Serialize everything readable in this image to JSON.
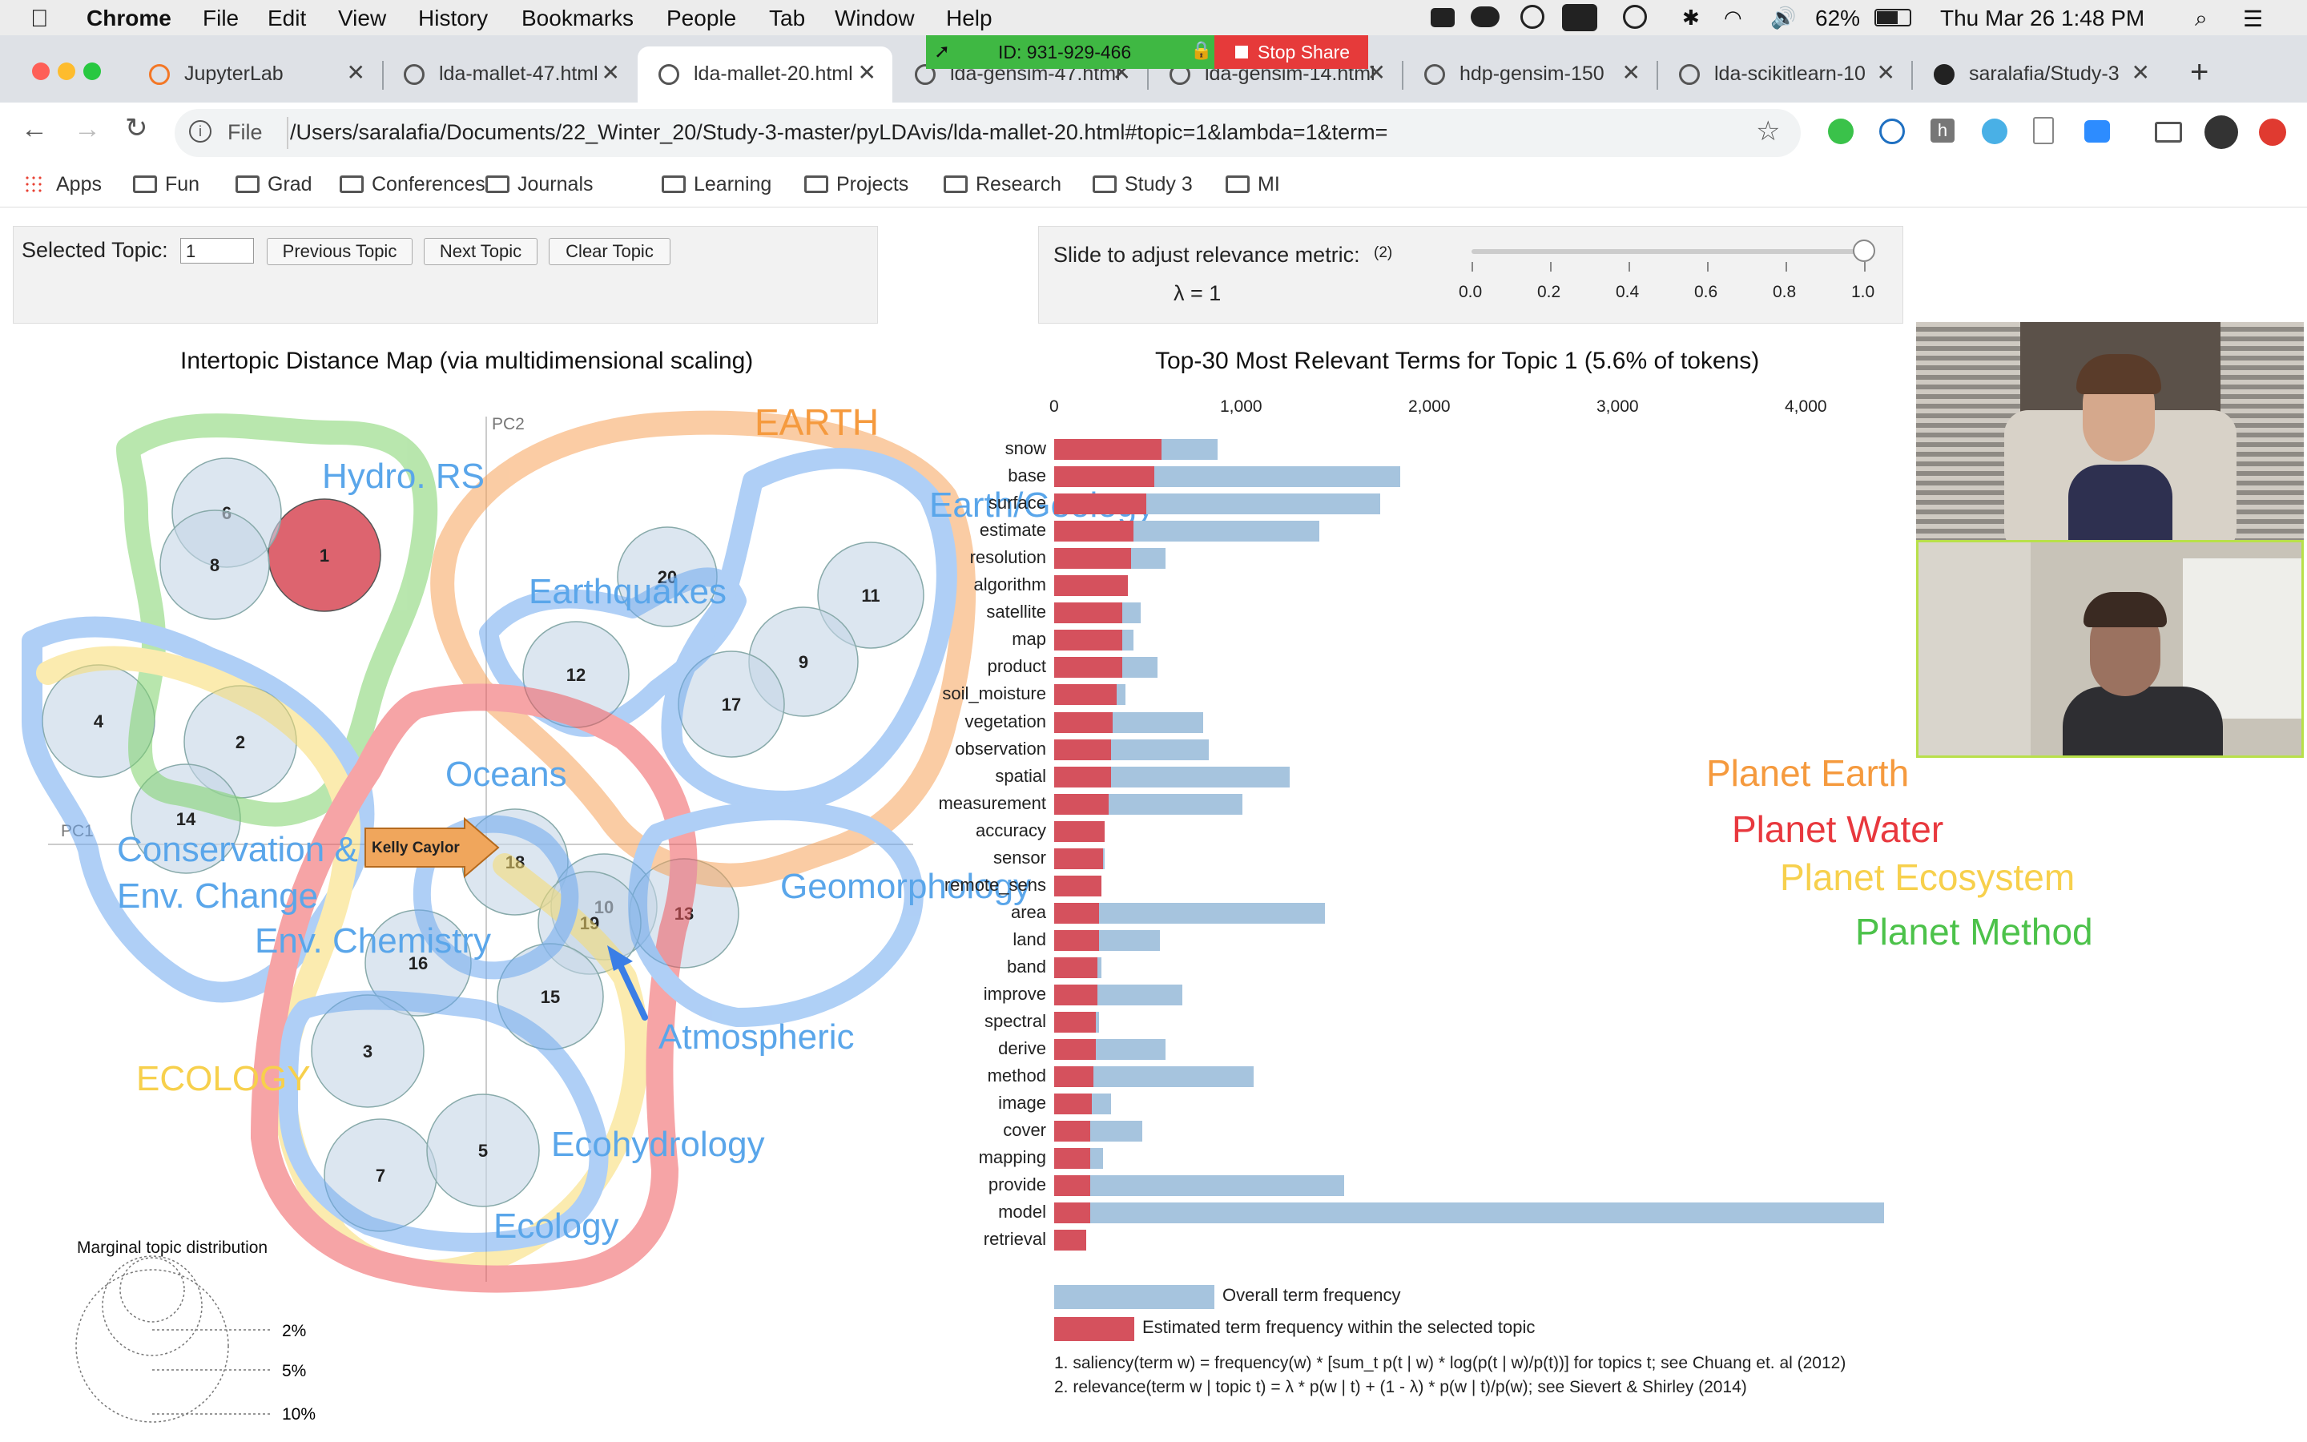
{
  "menubar": {
    "app": "Chrome",
    "items": [
      "File",
      "Edit",
      "View",
      "History",
      "Bookmarks",
      "People",
      "Tab",
      "Window",
      "Help"
    ],
    "battery": "62%",
    "clock": "Thu Mar 26  1:48 PM"
  },
  "share": {
    "id": "ID: 931-929-466",
    "stop": "Stop Share"
  },
  "tabs": [
    {
      "title": "JupyterLab"
    },
    {
      "title": "lda-mallet-47.html"
    },
    {
      "title": "lda-mallet-20.html"
    },
    {
      "title": "lda-gensim-47.html"
    },
    {
      "title": "lda-gensim-14.html"
    },
    {
      "title": "hdp-gensim-150"
    },
    {
      "title": "lda-scikitlearn-10"
    },
    {
      "title": "saralafia/Study-3"
    }
  ],
  "address": {
    "scheme": "File",
    "url": "/Users/saralafia/Documents/22_Winter_20/Study-3-master/pyLDAvis/lda-mallet-20.html#topic=1&lambda=1&term="
  },
  "bookmarks": [
    "Apps",
    "Fun",
    "Grad",
    "Conferences",
    "Journals",
    "Learning",
    "Projects",
    "Research",
    "Study 3",
    "MI"
  ],
  "topic_panel": {
    "label": "Selected Topic:",
    "value": "1",
    "prev": "Previous Topic",
    "next": "Next Topic",
    "clear": "Clear Topic"
  },
  "slider": {
    "label": "Slide to adjust relevance metric:",
    "footnote_mark": "(2)",
    "lambda_text": "λ = 1",
    "value": 1.0,
    "ticks": [
      "0.0",
      "0.2",
      "0.4",
      "0.6",
      "0.8",
      "1.0"
    ]
  },
  "map": {
    "title": "Intertopic Distance Map (via multidimensional scaling)",
    "pc1": "PC1",
    "pc2": "PC2",
    "marginal_title": "Marginal topic distribution",
    "marginal_labels": [
      "2%",
      "5%",
      "10%"
    ]
  },
  "chart_data": {
    "type": "bar",
    "title": "Top-30 Most Relevant Terms for Topic 1 (5.6% of tokens)",
    "xlim": [
      0,
      4500
    ],
    "x_ticks": [
      "0",
      "1,000",
      "2,000",
      "3,000",
      "4,000"
    ],
    "categories": [
      "snow",
      "base",
      "surface",
      "estimate",
      "resolution",
      "algorithm",
      "satellite",
      "map",
      "product",
      "soil_moisture",
      "vegetation",
      "observation",
      "spatial",
      "measurement",
      "accuracy",
      "sensor",
      "remote_sens",
      "area",
      "land",
      "band",
      "improve",
      "spectral",
      "derive",
      "method",
      "image",
      "cover",
      "mapping",
      "provide",
      "model",
      "retrieval"
    ],
    "series": [
      {
        "name": "Overall term frequency",
        "color": "#a6c4de",
        "values": [
          870,
          1840,
          1730,
          1410,
          590,
          390,
          460,
          420,
          550,
          380,
          790,
          820,
          1250,
          1000,
          270,
          270,
          250,
          1440,
          560,
          250,
          680,
          240,
          590,
          1060,
          300,
          470,
          260,
          1540,
          4410,
          170
        ]
      },
      {
        "name": "Estimated term frequency within the selected topic",
        "color": "#d5515d",
        "values": [
          570,
          530,
          490,
          420,
          410,
          390,
          360,
          360,
          360,
          330,
          310,
          300,
          300,
          290,
          270,
          260,
          250,
          240,
          240,
          230,
          230,
          220,
          220,
          210,
          200,
          190,
          190,
          190,
          190,
          170
        ]
      }
    ],
    "footnotes": [
      "1. saliency(term w) = frequency(w) * [sum_t p(t | w) * log(p(t | w)/p(t))] for topics t; see Chuang et. al (2012)",
      "2. relevance(term w | topic t) = λ * p(w | t) + (1 - λ) * p(w | t)/p(w); see Sievert & Shirley (2014)"
    ]
  },
  "topics": [
    {
      "id": "1",
      "x": 405,
      "y": 693,
      "r": 70
    },
    {
      "id": "6",
      "x": 283,
      "y": 640,
      "r": 68
    },
    {
      "id": "8",
      "x": 268,
      "y": 705,
      "r": 68
    },
    {
      "id": "4",
      "x": 123,
      "y": 900,
      "r": 70
    },
    {
      "id": "2",
      "x": 300,
      "y": 926,
      "r": 70
    },
    {
      "id": "14",
      "x": 232,
      "y": 1022,
      "r": 68
    },
    {
      "id": "20",
      "x": 833,
      "y": 720,
      "r": 62
    },
    {
      "id": "11",
      "x": 1087,
      "y": 743,
      "r": 66
    },
    {
      "id": "12",
      "x": 719,
      "y": 842,
      "r": 66
    },
    {
      "id": "9",
      "x": 1003,
      "y": 826,
      "r": 68
    },
    {
      "id": "17",
      "x": 913,
      "y": 879,
      "r": 66
    },
    {
      "id": "18",
      "x": 643,
      "y": 1076,
      "r": 66
    },
    {
      "id": "10",
      "x": 754,
      "y": 1132,
      "r": 66
    },
    {
      "id": "13",
      "x": 854,
      "y": 1140,
      "r": 68
    },
    {
      "id": "19",
      "x": 736,
      "y": 1152,
      "r": 64
    },
    {
      "id": "16",
      "x": 522,
      "y": 1202,
      "r": 66
    },
    {
      "id": "15",
      "x": 687,
      "y": 1244,
      "r": 66
    },
    {
      "id": "3",
      "x": 459,
      "y": 1312,
      "r": 70
    },
    {
      "id": "7",
      "x": 475,
      "y": 1467,
      "r": 70
    },
    {
      "id": "5",
      "x": 603,
      "y": 1436,
      "r": 70
    }
  ],
  "annotations": {
    "hydro": "Hydro. RS",
    "earth": "EARTH",
    "earth_geology": "Earth/Geology",
    "earthquakes": "Earthquakes",
    "oceans": "Oceans",
    "conservation1": "Conservation &",
    "conservation2": "Env. Change",
    "env_chem": "Env. Chemistry",
    "geomorph": "Geomorphology",
    "atmospheric": "Atmospheric",
    "ecology_caps": "ECOLOGY",
    "ecohydrology": "Ecohydrology",
    "ecology": "Ecology",
    "pointer": "Kelly Caylor",
    "planet_earth": "Planet Earth",
    "planet_water": "Planet Water",
    "planet_ecosystem": "Planet Ecosystem",
    "planet_method": "Planet Method"
  },
  "colors": {
    "hydro": "#5aa6ea",
    "earth_orange": "#f59a3e",
    "planet_water": "#e8383e",
    "planet_eco": "#f7d04c",
    "planet_method": "#4cc24a",
    "bar_red": "#d5515d",
    "bar_blue": "#a6c4de"
  }
}
